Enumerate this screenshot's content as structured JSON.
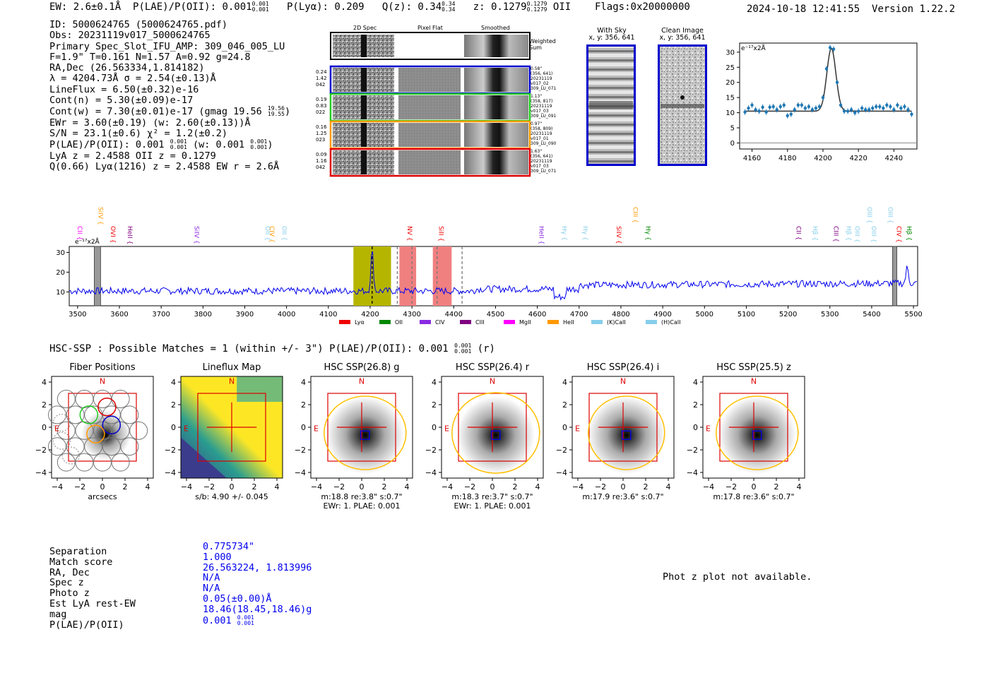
{
  "header": {
    "ew": "EW: 2.6±0.1Å",
    "plae": "P(LAE)/P(OII): 0.001",
    "plae_hi": "0.001",
    "plae_lo": "0.001",
    "plya": "P(Lyα): 0.209",
    "qz": "Q(z): 0.34",
    "qz_hi": "0.34",
    "qz_lo": "0.34",
    "z": "z: 0.1279",
    "z_hi": "0.1279",
    "z_lo": "0.1279",
    "z_line": "OII",
    "flags": "Flags:0x20000000",
    "datetime": "2024-10-18 12:41:55",
    "version": "Version 1.22.2"
  },
  "info": [
    "ID: 5000624765 (5000624765.pdf)",
    "Obs: 20231119v017_5000624765",
    "Primary Spec_Slot_IFU_AMP: 309_046_005_LU",
    "F=1.9\"  T=0.161  N=1.57  A=0.92  g=24.8",
    "RA,Dec (26.563334,1.814182)",
    "λ = 4204.73Å  σ = 2.54(±0.13)Å",
    "LineFlux = 6.50(±0.32)e-16",
    "Cont(n) = 5.30(±0.09)e-17",
    "Cont(w) = 7.30(±0.01)e-17 (gmag 19.56",
    "EWr = 3.60(±0.19) (w: 2.60(±0.13))Å",
    "S/N = 23.1(±0.6)  χ² = 1.2(±0.2)",
    "P(LAE)/P(OII): 0.001",
    "LyA z = 2.4588  OII z = 0.1279",
    "Q(0.66) Lyα(1216) z = 2.4588  EW r = 2.6Å"
  ],
  "info_fracs": {
    "gmag_hi": "19.56",
    "gmag_lo": "19.55",
    "plae_hi": "0.001",
    "plae_lo": "0.001",
    "w_label": "(w: 0.001",
    "w_hi": "0.001",
    "w_lo": "0.001"
  },
  "cutouts": {
    "col_2d": "2D Spec",
    "col_flat": "Pixel Flat",
    "col_smooth": "Smoothed",
    "weighted": "Weighted Sum",
    "rows": [
      {
        "left": [
          "0.24",
          "1.42",
          "042"
        ],
        "right": [
          "0.58\"",
          "(356, 641)",
          "20231119",
          "v017_02",
          "309_LU_071"
        ],
        "color": "#0000cc"
      },
      {
        "left": [
          "0.19",
          "0.83",
          "022"
        ],
        "right": [
          "1.13\"",
          "(358, 817)",
          "20231119",
          "v017_03",
          "309_LU_091"
        ],
        "color": "#22cc22"
      },
      {
        "left": [
          "0.16",
          "1.25",
          "023"
        ],
        "right": [
          "0.97\"",
          "(358, 809)",
          "20231119",
          "v017_01",
          "309_LU_090"
        ],
        "color": "#ff9900"
      },
      {
        "left": [
          "0.09",
          "1.16",
          "042"
        ],
        "right": [
          "1.63\"",
          "(356, 641)",
          "20231119",
          "v017_03",
          "309_LU_071"
        ],
        "color": "#dd0000"
      }
    ]
  },
  "sky": {
    "with_sky": "With Sky",
    "with_sky_xy": "x, y: 356, 641",
    "clean": "Clean Image",
    "clean_xy": "x, y: 356, 641"
  },
  "zoom_chart": {
    "unit": "e⁻¹⁷x2Å",
    "xticks": [
      "4160",
      "4180",
      "4200",
      "4220",
      "4240"
    ],
    "yticks": [
      "0",
      "5",
      "10",
      "15",
      "20",
      "25",
      "30"
    ]
  },
  "spectrum": {
    "unit": "e⁻¹⁷x2Å",
    "xticks": [
      "3500",
      "3600",
      "3700",
      "3800",
      "3900",
      "4000",
      "4100",
      "4200",
      "4300",
      "4400",
      "4500",
      "4600",
      "4700",
      "4800",
      "4900",
      "5000",
      "5100",
      "5200",
      "5300",
      "5400",
      "5500"
    ],
    "yticks": [
      "10",
      "20",
      "30"
    ],
    "legend": [
      {
        "label": "Lyα",
        "color": "#ee0000"
      },
      {
        "label": "OII",
        "color": "#008800"
      },
      {
        "label": "CIV",
        "color": "#8a2be2"
      },
      {
        "label": "CIII",
        "color": "#800080"
      },
      {
        "label": "MgII",
        "color": "#ff00ff"
      },
      {
        "label": "HeII",
        "color": "#ff9900"
      },
      {
        "label": "(K)CaII",
        "color": "#87ceeb"
      },
      {
        "label": "(H)CaII",
        "color": "#87ceeb"
      }
    ],
    "lines": [
      {
        "label": "CII",
        "color": "#ff00ff"
      },
      {
        "label": "SiIV",
        "color": "#ff9900"
      },
      {
        "label": "OVI",
        "color": "#ee0000"
      },
      {
        "label": "HeII",
        "color": "#800080"
      },
      {
        "label": "SiIV",
        "color": "#8a2be2"
      },
      {
        "label": "OII",
        "color": "#87ceeb"
      },
      {
        "label": "CIV",
        "color": "#ff9900"
      },
      {
        "label": "OII",
        "color": "#87ceeb"
      },
      {
        "label": "NV",
        "color": "#ee0000"
      },
      {
        "label": "SiII",
        "color": "#ee0000"
      },
      {
        "label": "HeII",
        "color": "#8a2be2"
      },
      {
        "label": "Hγ",
        "color": "#87ceeb"
      },
      {
        "label": "Hγ",
        "color": "#87ceeb"
      },
      {
        "label": "SiIV",
        "color": "#ee0000"
      },
      {
        "label": "CIII",
        "color": "#ff9900"
      },
      {
        "label": "Hγ",
        "color": "#008800"
      },
      {
        "label": "CII",
        "color": "#800080"
      },
      {
        "label": "Hβ",
        "color": "#87ceeb"
      },
      {
        "label": "CIII",
        "color": "#800080"
      },
      {
        "label": "Hβ",
        "color": "#87ceeb"
      },
      {
        "label": "OIII",
        "color": "#87ceeb"
      },
      {
        "label": "OIII",
        "color": "#87ceeb"
      },
      {
        "label": "OIII",
        "color": "#87ceeb"
      },
      {
        "label": "OIII",
        "color": "#87ceeb"
      },
      {
        "label": "CIV",
        "color": "#ee0000"
      },
      {
        "label": "Hβ",
        "color": "#008800"
      }
    ]
  },
  "hsc": {
    "summary": "HSC-SSP : Possible Matches = 1 (within +/- 3\")  P(LAE)/P(OII): 0.001",
    "summary_hi": "0.001",
    "summary_lo": "0.001",
    "summary_band": "(r)",
    "panels": [
      {
        "title": "Fiber Positions",
        "caption1": "arcsecs",
        "caption2": ""
      },
      {
        "title": "Lineflux Map",
        "caption1": "s/b: 4.90 +/- 0.045",
        "caption2": ""
      },
      {
        "title": "HSC SSP(26.8) g",
        "caption1": "m:18.8  re:3.8\"  s:0.7\"",
        "caption2": "EWr: 1. PLAE: 0.001"
      },
      {
        "title": "HSC SSP(26.4) r",
        "caption1": "m:18.3  re:3.7\"  s:0.7\"",
        "caption2": "EWr: 1. PLAE: 0.001"
      },
      {
        "title": "HSC SSP(26.4) i",
        "caption1": "m:17.9  re:3.6\"  s:0.7\"",
        "caption2": ""
      },
      {
        "title": "HSC SSP(25.5) z",
        "caption1": "m:17.8  re:3.6\"  s:0.7\"",
        "caption2": ""
      }
    ],
    "axis_ticks": [
      "-4",
      "-2",
      "0",
      "2",
      "4"
    ],
    "n_label": "N",
    "e_label": "E"
  },
  "match": {
    "labels": [
      "Separation",
      "Match score",
      "RA, Dec",
      "Spec z",
      "Photo z",
      "Est LyA rest-EW",
      "mag",
      "P(LAE)/P(OII)"
    ],
    "values": [
      "0.775734\"",
      "1.000",
      "26.563224, 1.813996",
      "N/A",
      "N/A",
      "0.05(±0.00)Å",
      "18.46(18.45,18.46)g",
      "0.001"
    ],
    "plae_hi": "0.001",
    "plae_lo": "0.001",
    "photz_message": "Phot z plot not available."
  },
  "chart_data": [
    {
      "type": "scatter",
      "title": "",
      "xlabel": "",
      "ylabel": "e⁻¹⁷x2Å",
      "xlim": [
        4153,
        4253
      ],
      "ylim": [
        -2,
        33
      ],
      "x": [
        4156,
        4158,
        4160,
        4162,
        4164,
        4166,
        4168,
        4170,
        4172,
        4174,
        4176,
        4178,
        4180,
        4182,
        4184,
        4186,
        4188,
        4190,
        4192,
        4194,
        4196,
        4198,
        4200,
        4202,
        4204,
        4206,
        4208,
        4210,
        4212,
        4214,
        4216,
        4218,
        4220,
        4222,
        4224,
        4226,
        4228,
        4230,
        4232,
        4234,
        4236,
        4238,
        4240,
        4242,
        4244,
        4246,
        4248,
        4250
      ],
      "y": [
        10.2,
        11.5,
        12.5,
        11.0,
        10.5,
        11.8,
        10.2,
        11.8,
        12.0,
        11.0,
        12.0,
        12.5,
        9.0,
        9.5,
        11.0,
        12.5,
        12.5,
        11.5,
        12.0,
        11.0,
        11.5,
        12.0,
        15.0,
        24.5,
        31.5,
        31.0,
        20.0,
        12.5,
        10.5,
        10.5,
        11.0,
        10.0,
        10.5,
        11.5,
        11.0,
        11.0,
        11.5,
        12.0,
        12.0,
        11.5,
        12.5,
        12.0,
        11.0,
        12.5,
        11.5,
        12.0,
        11.0,
        9.5
      ],
      "fit": {
        "type": "gaussian",
        "center": 4204.73,
        "sigma": 2.54,
        "amplitude": 20.8,
        "baseline": 10.5
      }
    },
    {
      "type": "line",
      "title": "",
      "xlabel": "",
      "ylabel": "e⁻¹⁷x2Å",
      "xlim": [
        3480,
        5510
      ],
      "ylim": [
        3,
        33
      ],
      "series": [
        {
          "name": "spectrum",
          "color": "#0000ee"
        }
      ],
      "highlight_bands": [
        {
          "x0": 4160,
          "x1": 4250,
          "color": "#b5b500"
        },
        {
          "x0": 4270,
          "x1": 4310,
          "color": "#f08080"
        },
        {
          "x0": 4350,
          "x1": 4395,
          "color": "#f08080"
        }
      ],
      "gray_bands": [
        [
          3540,
          3555
        ],
        [
          5450,
          5460
        ]
      ],
      "dashed_lines": [
        4204.73,
        4265,
        4300,
        4360,
        4420
      ],
      "line_positions": [
        3500,
        3550,
        3580,
        3620,
        3780,
        3950,
        3960,
        3990,
        4290,
        4365,
        4605,
        4660,
        4710,
        4790,
        4830,
        4860,
        5220,
        5260,
        5310,
        5340,
        5360,
        5390,
        5400,
        5440,
        5460,
        5485
      ]
    }
  ]
}
